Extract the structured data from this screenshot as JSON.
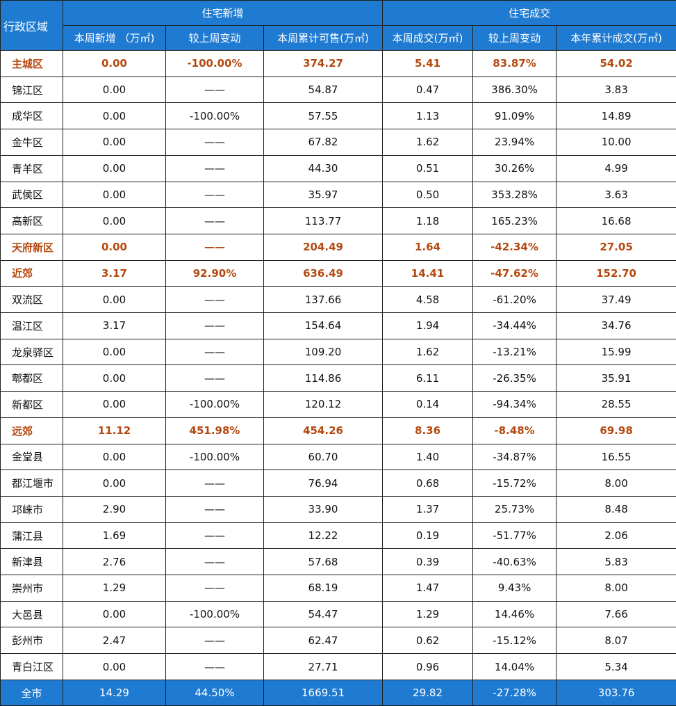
{
  "header": {
    "region_label": "行政区域",
    "group_new": "住宅新增",
    "group_deal": "住宅成交",
    "columns": [
      "本周新增 （万㎡)",
      "较上周变动",
      "本周累计可售(万㎡)",
      "本周成交(万㎡)",
      "较上周变动",
      "本年累计成交(万㎡)"
    ]
  },
  "rows": [
    {
      "name": "主城区",
      "summary": true,
      "cells": [
        "0.00",
        "-100.00%",
        "374.27",
        "5.41",
        "83.87%",
        "54.02"
      ]
    },
    {
      "name": "锦江区",
      "summary": false,
      "cells": [
        "0.00",
        "——",
        "54.87",
        "0.47",
        "386.30%",
        "3.83"
      ]
    },
    {
      "name": "成华区",
      "summary": false,
      "cells": [
        "0.00",
        "-100.00%",
        "57.55",
        "1.13",
        "91.09%",
        "14.89"
      ]
    },
    {
      "name": "金牛区",
      "summary": false,
      "cells": [
        "0.00",
        "——",
        "67.82",
        "1.62",
        "23.94%",
        "10.00"
      ]
    },
    {
      "name": "青羊区",
      "summary": false,
      "cells": [
        "0.00",
        "——",
        "44.30",
        "0.51",
        "30.26%",
        "4.99"
      ]
    },
    {
      "name": "武侯区",
      "summary": false,
      "cells": [
        "0.00",
        "——",
        "35.97",
        "0.50",
        "353.28%",
        "3.63"
      ]
    },
    {
      "name": "高新区",
      "summary": false,
      "cells": [
        "0.00",
        "——",
        "113.77",
        "1.18",
        "165.23%",
        "16.68"
      ]
    },
    {
      "name": "天府新区",
      "summary": true,
      "cells": [
        "0.00",
        "——",
        "204.49",
        "1.64",
        "-42.34%",
        "27.05"
      ]
    },
    {
      "name": "近郊",
      "summary": true,
      "cells": [
        "3.17",
        "92.90%",
        "636.49",
        "14.41",
        "-47.62%",
        "152.70"
      ]
    },
    {
      "name": "双流区",
      "summary": false,
      "cells": [
        "0.00",
        "——",
        "137.66",
        "4.58",
        "-61.20%",
        "37.49"
      ]
    },
    {
      "name": "温江区",
      "summary": false,
      "cells": [
        "3.17",
        "——",
        "154.64",
        "1.94",
        "-34.44%",
        "34.76"
      ]
    },
    {
      "name": "龙泉驿区",
      "summary": false,
      "cells": [
        "0.00",
        "——",
        "109.20",
        "1.62",
        "-13.21%",
        "15.99"
      ]
    },
    {
      "name": "郫都区",
      "summary": false,
      "cells": [
        "0.00",
        "——",
        "114.86",
        "6.11",
        "-26.35%",
        "35.91"
      ]
    },
    {
      "name": "新都区",
      "summary": false,
      "cells": [
        "0.00",
        "-100.00%",
        "120.12",
        "0.14",
        "-94.34%",
        "28.55"
      ]
    },
    {
      "name": "远郊",
      "summary": true,
      "cells": [
        "11.12",
        "451.98%",
        "454.26",
        "8.36",
        "-8.48%",
        "69.98"
      ]
    },
    {
      "name": "金堂县",
      "summary": false,
      "cells": [
        "0.00",
        "-100.00%",
        "60.70",
        "1.40",
        "-34.87%",
        "16.55"
      ]
    },
    {
      "name": "都江堰市",
      "summary": false,
      "cells": [
        "0.00",
        "——",
        "76.94",
        "0.68",
        "-15.72%",
        "8.00"
      ]
    },
    {
      "name": "邛崃市",
      "summary": false,
      "cells": [
        "2.90",
        "——",
        "33.90",
        "1.37",
        "25.73%",
        "8.48"
      ]
    },
    {
      "name": "蒲江县",
      "summary": false,
      "cells": [
        "1.69",
        "——",
        "12.22",
        "0.19",
        "-51.77%",
        "2.06"
      ]
    },
    {
      "name": "新津县",
      "summary": false,
      "cells": [
        "2.76",
        "——",
        "57.68",
        "0.39",
        "-40.63%",
        "5.83"
      ]
    },
    {
      "name": "崇州市",
      "summary": false,
      "cells": [
        "1.29",
        "——",
        "68.19",
        "1.47",
        "9.43%",
        "8.00"
      ]
    },
    {
      "name": "大邑县",
      "summary": false,
      "cells": [
        "0.00",
        "-100.00%",
        "54.47",
        "1.29",
        "14.46%",
        "7.66"
      ]
    },
    {
      "name": "彭州市",
      "summary": false,
      "cells": [
        "2.47",
        "——",
        "62.47",
        "0.62",
        "-15.12%",
        "8.07"
      ]
    },
    {
      "name": "青白江区",
      "summary": false,
      "cells": [
        "0.00",
        "——",
        "27.71",
        "0.96",
        "14.04%",
        "5.34"
      ]
    }
  ],
  "total": {
    "name": "全市",
    "cells": [
      "14.29",
      "44.50%",
      "1669.51",
      "29.82",
      "-27.28%",
      "303.76"
    ]
  },
  "colors": {
    "header_bg": "#1f7bd1",
    "summary_text": "#b5480f",
    "border": "#1f1f1f"
  }
}
